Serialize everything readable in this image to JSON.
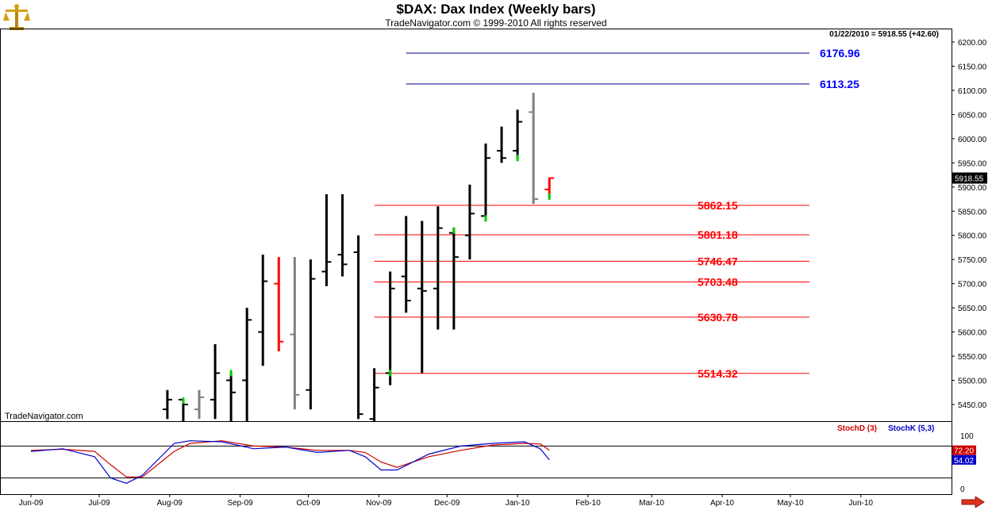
{
  "header": {
    "title": "$DAX:  Dax Index  (Weekly bars)",
    "subtitle": "TradeNavigator.com © 1999-2010 All rights reserved",
    "quote_line": "01/22/2010 = 5918.55 (+42.60)",
    "watermark": "TradeNavigator.com"
  },
  "colors": {
    "bar_up": "#000000",
    "bar_neutral": "#808080",
    "bar_down_red": "#ff0000",
    "highlight_green": "#00cc00",
    "support_line": "#ff0000",
    "support_label": "#ff0000",
    "resistance_line": "#00008b",
    "resistance_label": "#0000ff",
    "stoch_d": "#cc0000",
    "stoch_k": "#0000cc"
  },
  "icons": {
    "logo": "brass-scale-icon",
    "scroll": "right-arrow-icon"
  },
  "chart_data": {
    "type": "ohlc",
    "title": "$DAX:  Dax Index  (Weekly bars)",
    "price_axis": {
      "ylim": [
        5410,
        6225
      ],
      "ticks": [
        "6200.00",
        "6150.00",
        "6100.00",
        "6050.00",
        "6000.00",
        "5950.00",
        "5900.00",
        "5850.00",
        "5800.00",
        "5750.00",
        "5700.00",
        "5650.00",
        "5600.00",
        "5550.00",
        "5500.00",
        "5450.00"
      ],
      "last_price_label": "5918.55",
      "grid": false
    },
    "x_axis": {
      "labels": [
        "Jun-09",
        "Jul-09",
        "Aug-09",
        "Sep-09",
        "Oct-09",
        "Nov-09",
        "Dec-09",
        "Jan-10",
        "Feb-10",
        "Mar-10",
        "Apr-10",
        "May-10",
        "Jun-10"
      ],
      "label_dates": [
        "2009-06-01",
        "2009-07-01",
        "2009-08-01",
        "2009-09-01",
        "2009-10-01",
        "2009-11-01",
        "2009-12-01",
        "2010-01-01",
        "2010-02-01",
        "2010-03-01",
        "2010-04-01",
        "2010-05-01",
        "2010-06-01"
      ]
    },
    "bars": [
      {
        "date": "2009-07-31",
        "open": 5440,
        "high": 5480,
        "low": 5420,
        "close": 5460,
        "color": "up"
      },
      {
        "date": "2009-08-07",
        "open": 5460,
        "high": 5460,
        "low": 5410,
        "close": 5450,
        "color": "up",
        "green_tick": 5458
      },
      {
        "date": "2009-08-14",
        "open": 5440,
        "high": 5480,
        "low": 5420,
        "close": 5465,
        "color": "neutral"
      },
      {
        "date": "2009-08-21",
        "open": 5460,
        "high": 5575,
        "low": 5420,
        "close": 5515,
        "color": "up"
      },
      {
        "date": "2009-08-28",
        "open": 5500,
        "high": 5515,
        "low": 5410,
        "close": 5475,
        "color": "up",
        "green_tick": 5515
      },
      {
        "date": "2009-09-04",
        "open": 5500,
        "high": 5650,
        "low": 5410,
        "close": 5625,
        "color": "up"
      },
      {
        "date": "2009-09-11",
        "open": 5600,
        "high": 5760,
        "low": 5530,
        "close": 5705,
        "color": "up"
      },
      {
        "date": "2009-09-18",
        "open": 5700,
        "high": 5755,
        "low": 5560,
        "close": 5580,
        "color": "down_red"
      },
      {
        "date": "2009-09-25",
        "open": 5595,
        "high": 5755,
        "low": 5440,
        "close": 5470,
        "color": "neutral"
      },
      {
        "date": "2009-10-02",
        "open": 5480,
        "high": 5750,
        "low": 5440,
        "close": 5710,
        "color": "up"
      },
      {
        "date": "2009-10-09",
        "open": 5725,
        "high": 5885,
        "low": 5695,
        "close": 5745,
        "color": "up"
      },
      {
        "date": "2009-10-16",
        "open": 5760,
        "high": 5885,
        "low": 5715,
        "close": 5740,
        "color": "up"
      },
      {
        "date": "2009-10-23",
        "open": 5765,
        "high": 5800,
        "low": 5420,
        "close": 5430,
        "color": "up"
      },
      {
        "date": "2009-10-30",
        "open": 5420,
        "high": 5525,
        "low": 5410,
        "close": 5485,
        "color": "up"
      },
      {
        "date": "2009-11-06",
        "open": 5515,
        "high": 5725,
        "low": 5490,
        "close": 5690,
        "color": "up",
        "green_tick": 5515
      },
      {
        "date": "2009-11-13",
        "open": 5715,
        "high": 5840,
        "low": 5640,
        "close": 5665,
        "color": "up"
      },
      {
        "date": "2009-11-20",
        "open": 5690,
        "high": 5830,
        "low": 5515,
        "close": 5685,
        "color": "up"
      },
      {
        "date": "2009-11-27",
        "open": 5690,
        "high": 5860,
        "low": 5605,
        "close": 5815,
        "color": "up"
      },
      {
        "date": "2009-12-04",
        "open": 5805,
        "high": 5815,
        "low": 5605,
        "close": 5755,
        "color": "up",
        "green_tick": 5810
      },
      {
        "date": "2009-12-11",
        "open": 5800,
        "high": 5905,
        "low": 5750,
        "close": 5845,
        "color": "up"
      },
      {
        "date": "2009-12-18",
        "open": 5840,
        "high": 5990,
        "low": 5835,
        "close": 5960,
        "color": "up",
        "green_tick": 5835
      },
      {
        "date": "2009-12-25",
        "open": 5975,
        "high": 6025,
        "low": 5950,
        "close": 5960,
        "color": "up"
      },
      {
        "date": "2010-01-01",
        "open": 5975,
        "high": 6060,
        "low": 5960,
        "close": 6035,
        "color": "up",
        "green_tick": 5960
      },
      {
        "date": "2010-01-08",
        "open": 6055,
        "high": 6095,
        "low": 5865,
        "close": 5875,
        "color": "neutral"
      },
      {
        "date": "2010-01-15",
        "open": 5895,
        "high": 5920,
        "low": 5880,
        "close": 5918.55,
        "color": "down_red",
        "green_tick": 5880
      }
    ],
    "support_levels": [
      {
        "value": "5862.15",
        "price": 5862.15,
        "start_date": "2009-10-30"
      },
      {
        "value": "5801.18",
        "price": 5801.18,
        "start_date": "2009-10-30"
      },
      {
        "value": "5746.47",
        "price": 5746.47,
        "start_date": "2009-10-30"
      },
      {
        "value": "5703.48",
        "price": 5703.48,
        "start_date": "2009-10-30"
      },
      {
        "value": "5630.78",
        "price": 5630.78,
        "start_date": "2009-10-30"
      },
      {
        "value": "5514.32",
        "price": 5514.32,
        "start_date": "2009-10-30"
      }
    ],
    "resistance_levels": [
      {
        "value": "6176.96",
        "price": 6176.96,
        "start_date": "2009-11-13"
      },
      {
        "value": "6113.25",
        "price": 6113.25,
        "start_date": "2009-11-13"
      }
    ],
    "stochastic": {
      "legend_d": "StochD (3)",
      "legend_k": "StochK (5,3)",
      "ylim": [
        0,
        100
      ],
      "ticks": [
        "100",
        "0"
      ],
      "levels": [
        80,
        20
      ],
      "last_d": "72.20",
      "last_k": "54.02",
      "dates": [
        "2009-06-01",
        "2009-06-15",
        "2009-06-29",
        "2009-07-06",
        "2009-07-13",
        "2009-07-20",
        "2009-08-03",
        "2009-08-10",
        "2009-08-24",
        "2009-09-07",
        "2009-09-21",
        "2009-10-05",
        "2009-10-19",
        "2009-10-26",
        "2009-11-02",
        "2009-11-09",
        "2009-11-23",
        "2009-12-07",
        "2009-12-21",
        "2010-01-04",
        "2010-01-11",
        "2010-01-15"
      ],
      "k": [
        70,
        75,
        60,
        20,
        10,
        25,
        85,
        90,
        88,
        75,
        78,
        68,
        72,
        60,
        35,
        35,
        65,
        80,
        85,
        88,
        75,
        54.02
      ],
      "d": [
        72,
        74,
        70,
        45,
        22,
        22,
        70,
        85,
        90,
        80,
        78,
        72,
        72,
        68,
        50,
        40,
        60,
        72,
        82,
        85,
        84,
        72.2
      ]
    }
  }
}
